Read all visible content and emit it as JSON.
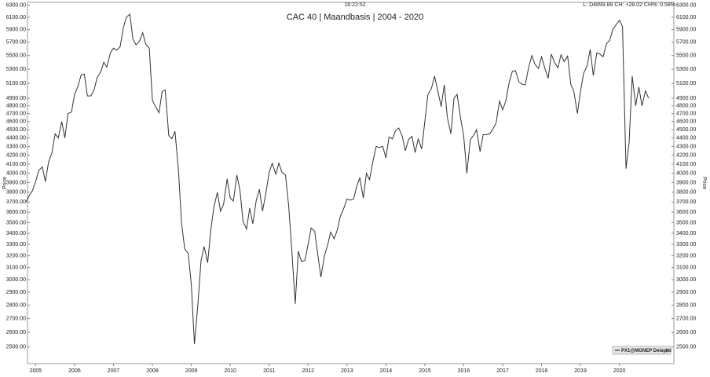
{
  "chart_data": {
    "type": "line",
    "title": "CAC 40 | Maandbasis | 2004 - 2020",
    "time": "16:22:52",
    "status": "L: D4899.89 CH: +28.02 CH%: 0.58%",
    "ylabel": "Price",
    "legend_position": "lower right",
    "color": "#333333",
    "yscale": "log",
    "series_name": "PX1@MONEP Delayed",
    "xlim": [
      2004.79,
      2021.4
    ],
    "xticks": [
      2005,
      2006,
      2007,
      2008,
      2009,
      2010,
      2011,
      2012,
      2013,
      2014,
      2015,
      2016,
      2017,
      2018,
      2019,
      2020
    ],
    "ylim": [
      2390,
      6350
    ],
    "yticks": [
      {
        "value": 6300,
        "label": "6300.00"
      },
      {
        "value": 6100,
        "label": "6100.00"
      },
      {
        "value": 5900,
        "label": "5900.00"
      },
      {
        "value": 5700,
        "label": "5700.00"
      },
      {
        "value": 5500,
        "label": "5500.00"
      },
      {
        "value": 5300,
        "label": "5300.00"
      },
      {
        "value": 5100,
        "label": "5100.00"
      },
      {
        "value": 4900,
        "label": "4900.00"
      },
      {
        "value": 4800,
        "label": "4800.00"
      },
      {
        "value": 4700,
        "label": "4700.00"
      },
      {
        "value": 4600,
        "label": "4600.00"
      },
      {
        "value": 4500,
        "label": "4500.00"
      },
      {
        "value": 4400,
        "label": "4400.00"
      },
      {
        "value": 4300,
        "label": "4300.00"
      },
      {
        "value": 4200,
        "label": "4200.00"
      },
      {
        "value": 4100,
        "label": "4100.00"
      },
      {
        "value": 4000,
        "label": "4000.00"
      },
      {
        "value": 3900,
        "label": "3900.00"
      },
      {
        "value": 3800,
        "label": "3800.00"
      },
      {
        "value": 3700,
        "label": "3700.00"
      },
      {
        "value": 3600,
        "label": "3600.00"
      },
      {
        "value": 3500,
        "label": "3500.00"
      },
      {
        "value": 3400,
        "label": "3400.00"
      },
      {
        "value": 3300,
        "label": "3300.00"
      },
      {
        "value": 3200,
        "label": "3200.00"
      },
      {
        "value": 3100,
        "label": "3100.00"
      },
      {
        "value": 3000,
        "label": "3000.00"
      },
      {
        "value": 2900,
        "label": "2900.00"
      },
      {
        "value": 2800,
        "label": "2800.00"
      },
      {
        "value": 2700,
        "label": "2700.00"
      },
      {
        "value": 2600,
        "label": "2600.00"
      },
      {
        "value": 2500,
        "label": "2500.00"
      }
    ],
    "x": [
      2004.75,
      2004.83,
      2004.92,
      2005,
      2005.08,
      2005.17,
      2005.25,
      2005.33,
      2005.42,
      2005.5,
      2005.58,
      2005.67,
      2005.75,
      2005.83,
      2005.92,
      2006,
      2006.08,
      2006.17,
      2006.25,
      2006.33,
      2006.42,
      2006.5,
      2006.58,
      2006.67,
      2006.75,
      2006.83,
      2006.92,
      2007,
      2007.08,
      2007.17,
      2007.25,
      2007.33,
      2007.42,
      2007.5,
      2007.58,
      2007.67,
      2007.75,
      2007.83,
      2007.92,
      2008,
      2008.08,
      2008.17,
      2008.25,
      2008.33,
      2008.42,
      2008.5,
      2008.58,
      2008.67,
      2008.75,
      2008.83,
      2008.92,
      2009,
      2009.08,
      2009.17,
      2009.25,
      2009.33,
      2009.42,
      2009.5,
      2009.58,
      2009.67,
      2009.75,
      2009.83,
      2009.92,
      2010,
      2010.08,
      2010.17,
      2010.25,
      2010.33,
      2010.42,
      2010.5,
      2010.58,
      2010.67,
      2010.75,
      2010.83,
      2010.92,
      2011,
      2011.08,
      2011.17,
      2011.25,
      2011.33,
      2011.42,
      2011.5,
      2011.58,
      2011.67,
      2011.75,
      2011.83,
      2011.92,
      2012,
      2012.08,
      2012.17,
      2012.25,
      2012.33,
      2012.42,
      2012.5,
      2012.58,
      2012.67,
      2012.75,
      2012.83,
      2012.92,
      2013,
      2013.08,
      2013.17,
      2013.25,
      2013.33,
      2013.42,
      2013.5,
      2013.58,
      2013.67,
      2013.75,
      2013.83,
      2013.92,
      2014,
      2014.08,
      2014.17,
      2014.25,
      2014.33,
      2014.42,
      2014.5,
      2014.58,
      2014.67,
      2014.75,
      2014.83,
      2014.92,
      2015,
      2015.08,
      2015.17,
      2015.25,
      2015.33,
      2015.42,
      2015.5,
      2015.58,
      2015.67,
      2015.75,
      2015.83,
      2015.92,
      2016,
      2016.08,
      2016.17,
      2016.25,
      2016.33,
      2016.42,
      2016.5,
      2016.58,
      2016.67,
      2016.75,
      2016.83,
      2016.92,
      2017,
      2017.08,
      2017.17,
      2017.25,
      2017.33,
      2017.42,
      2017.5,
      2017.58,
      2017.67,
      2017.75,
      2017.83,
      2017.92,
      2018,
      2018.08,
      2018.17,
      2018.25,
      2018.33,
      2018.42,
      2018.5,
      2018.58,
      2018.67,
      2018.75,
      2018.83,
      2018.92,
      2019,
      2019.08,
      2019.17,
      2019.25,
      2019.33,
      2019.42,
      2019.5,
      2019.58,
      2019.67,
      2019.75,
      2019.83,
      2019.92,
      2020,
      2020.08,
      2020.17,
      2020.25,
      2020.33,
      2020.42,
      2020.5,
      2020.58,
      2020.67,
      2020.75
    ],
    "values": [
      3700,
      3760,
      3820,
      3910,
      4030,
      4070,
      3910,
      4120,
      4230,
      4450,
      4400,
      4600,
      4400,
      4700,
      4720,
      4950,
      5050,
      5220,
      5230,
      4930,
      4930,
      5010,
      5180,
      5260,
      5400,
      5330,
      5540,
      5610,
      5580,
      5630,
      5920,
      6100,
      6150,
      5750,
      5660,
      5720,
      5850,
      5670,
      5610,
      4870,
      4790,
      4710,
      4990,
      5010,
      4430,
      4390,
      4480,
      4030,
      3490,
      3260,
      3220,
      2960,
      2520,
      2810,
      3160,
      3280,
      3140,
      3430,
      3650,
      3800,
      3610,
      3680,
      3940,
      3740,
      3710,
      3980,
      3820,
      3510,
      3440,
      3640,
      3490,
      3720,
      3830,
      3610,
      3800,
      4010,
      4110,
      3990,
      4110,
      4010,
      3980,
      3670,
      3260,
      2810,
      3240,
      3150,
      3160,
      3300,
      3450,
      3420,
      3210,
      3020,
      3200,
      3290,
      3410,
      3350,
      3430,
      3560,
      3640,
      3730,
      3720,
      3730,
      3860,
      3950,
      3740,
      4000,
      3930,
      4140,
      4300,
      4290,
      4300,
      4170,
      4410,
      4390,
      4490,
      4520,
      4420,
      4250,
      4380,
      4420,
      4230,
      4390,
      4270,
      4600,
      4950,
      5030,
      5200,
      5010,
      4790,
      5080,
      4650,
      4450,
      4900,
      4950,
      4640,
      4420,
      4000,
      4380,
      4430,
      4500,
      4240,
      4440,
      4440,
      4450,
      4510,
      4580,
      4860,
      4750,
      4860,
      5120,
      5270,
      5280,
      5120,
      5090,
      5080,
      5330,
      5500,
      5370,
      5310,
      5480,
      5320,
      5170,
      5520,
      5400,
      5320,
      5510,
      5410,
      5490,
      5090,
      4990,
      4700,
      4990,
      5240,
      5350,
      5590,
      5210,
      5540,
      5520,
      5480,
      5680,
      5730,
      5900,
      5980,
      6050,
      5950,
      4050,
      4350,
      5200,
      4800,
      5050,
      4800,
      5000,
      4900
    ]
  }
}
